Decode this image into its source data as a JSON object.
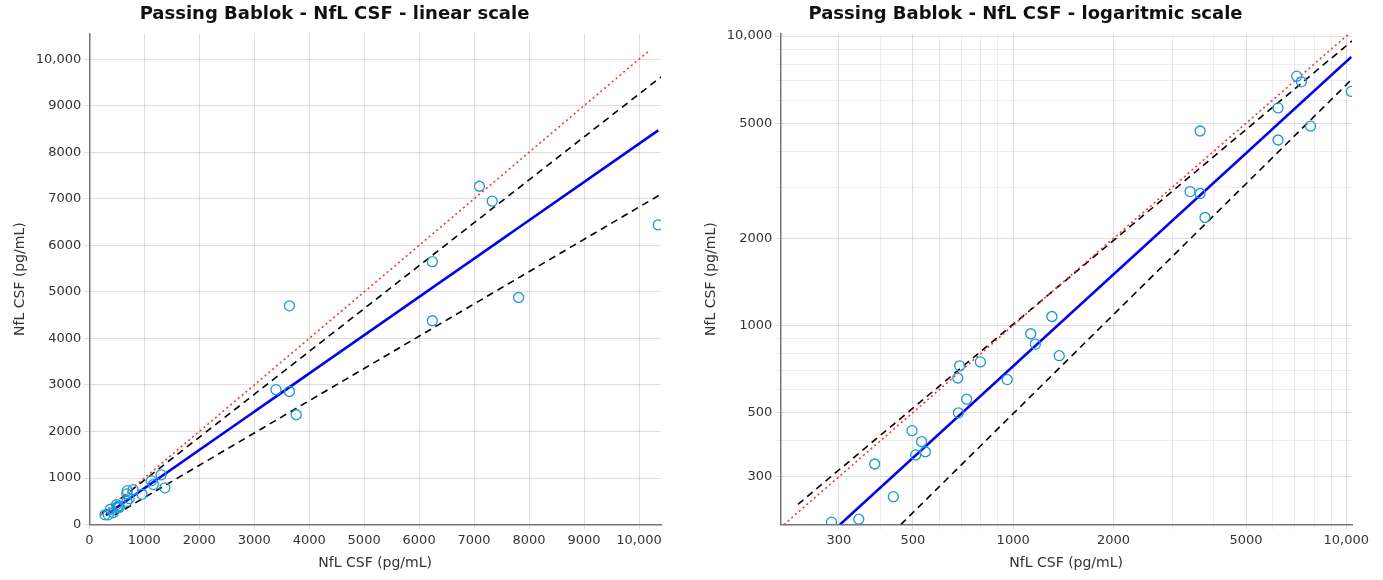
{
  "chart_data": [
    {
      "type": "scatter",
      "title": "Passing Bablok - NfL CSF - linear scale",
      "xlabel": "NfL CSF (pg/mL)",
      "ylabel": "NfL CSF (pg/mL)",
      "grid": true,
      "legend": false,
      "marker": "circle",
      "xlim": [
        0,
        10400
      ],
      "ylim": [
        0,
        10550
      ],
      "xticks": [
        0,
        1000,
        2000,
        3000,
        4000,
        5000,
        6000,
        7000,
        8000,
        9000,
        {
          "value": 10000,
          "label": "10,000"
        }
      ],
      "yticks": [
        0,
        1000,
        2000,
        3000,
        4000,
        5000,
        6000,
        7000,
        8000,
        9000,
        {
          "value": 10000,
          "label": "10,000"
        }
      ],
      "x": [
        285,
        344,
        384,
        437,
        497,
        531,
        510,
        545,
        685,
        725,
        682,
        691,
        797,
        960,
        1129,
        1166,
        1307,
        1375,
        3397,
        3641,
        3765,
        3641,
        6240,
        6240,
        7097,
        7330,
        7810,
        10350
      ],
      "series": [
        {
          "color": "#1a9ad6",
          "values": [
            210,
            210,
            330,
            260,
            430,
            400,
            360,
            370,
            500,
            560,
            660,
            730,
            750,
            650,
            940,
            860,
            1070,
            790,
            2900,
            2860,
            2360,
            4700,
            5650,
            4380,
            7270,
            6950,
            4880,
            6440
          ]
        },
        {
          "type": "line",
          "color": "#ff3333",
          "line_style": "dotted",
          "marker": "none",
          "x": [
            205,
            10200
          ],
          "values": [
            205,
            10200
          ]
        },
        {
          "type": "line",
          "color": "#000000",
          "line_style": "dashed",
          "marker": "none",
          "x": [
            226,
            10400
          ],
          "values": [
            240,
            9620
          ]
        },
        {
          "type": "line",
          "color": "#000000",
          "line_style": "dashed",
          "marker": "none",
          "x": [
            460,
            10400
          ],
          "values": [
            205,
            7100
          ]
        },
        {
          "type": "line",
          "color": "#0000ee",
          "line_style": "solid",
          "marker": "none",
          "x": [
            302,
            10350
          ],
          "values": [
            205,
            8470
          ]
        }
      ]
    },
    {
      "type": "scatter",
      "title": "Passing Bablok - NfL CSF - logaritmic scale",
      "xlabel": "NfL CSF (pg/mL)",
      "ylabel": "NfL CSF (pg/mL)",
      "grid": true,
      "legend": false,
      "marker": "circle",
      "log": "xy",
      "xlim": [
        200,
        10400
      ],
      "ylim": [
        205,
        10200
      ],
      "xticks": [
        300,
        {
          "value": 400,
          "label": null
        },
        500,
        {
          "value": 600,
          "label": null
        },
        {
          "value": 700,
          "label": null
        },
        {
          "value": 800,
          "label": null
        },
        {
          "value": 900,
          "label": null
        },
        1000,
        2000,
        {
          "value": 3000,
          "label": null
        },
        {
          "value": 4000,
          "label": null
        },
        5000,
        {
          "value": 6000,
          "label": null
        },
        {
          "value": 7000,
          "label": null
        },
        {
          "value": 8000,
          "label": null
        },
        {
          "value": 9000,
          "label": null
        },
        {
          "value": 10000,
          "label": "10,000"
        }
      ],
      "yticks": [
        300,
        {
          "value": 400,
          "label": null
        },
        500,
        {
          "value": 600,
          "label": null
        },
        {
          "value": 700,
          "label": null
        },
        {
          "value": 800,
          "label": null
        },
        {
          "value": 900,
          "label": null
        },
        1000,
        2000,
        {
          "value": 3000,
          "label": null
        },
        {
          "value": 4000,
          "label": null
        },
        5000,
        {
          "value": 6000,
          "label": null
        },
        {
          "value": 7000,
          "label": null
        },
        {
          "value": 8000,
          "label": null
        },
        {
          "value": 9000,
          "label": null
        },
        {
          "value": 10000,
          "label": "10,000"
        }
      ],
      "x": [
        285,
        344,
        384,
        437,
        497,
        531,
        510,
        545,
        685,
        725,
        682,
        691,
        797,
        960,
        1129,
        1166,
        1307,
        1375,
        3397,
        3641,
        3765,
        3641,
        6240,
        6240,
        7097,
        7330,
        7810,
        10350
      ],
      "series": [
        {
          "color": "#1a9ad6",
          "values": [
            209,
            214,
            332,
            256,
            433,
            397,
            357,
            366,
            499,
            556,
            658,
            725,
            748,
            650,
            936,
            862,
            1074,
            786,
            2901,
            2858,
            2361,
            4699,
            5645,
            4375,
            7270,
            6950,
            4883,
            6440
          ]
        },
        {
          "type": "line",
          "color": "#ff3333",
          "line_style": "dotted",
          "marker": "none",
          "x": [
            205,
            10200
          ],
          "values": [
            205,
            10200
          ]
        },
        {
          "type": "line",
          "color": "#000000",
          "line_style": "dashed",
          "marker": "none",
          "x": [
            226,
            10400
          ],
          "values": [
            241,
            9620
          ]
        },
        {
          "type": "line",
          "color": "#000000",
          "line_style": "dashed",
          "marker": "none",
          "x": [
            460,
            10400
          ],
          "values": [
            205,
            7100
          ]
        },
        {
          "type": "line",
          "color": "#0000ee",
          "line_style": "solid",
          "marker": "none",
          "x": [
            302,
            10350
          ],
          "values": [
            205,
            8469
          ]
        }
      ]
    }
  ]
}
